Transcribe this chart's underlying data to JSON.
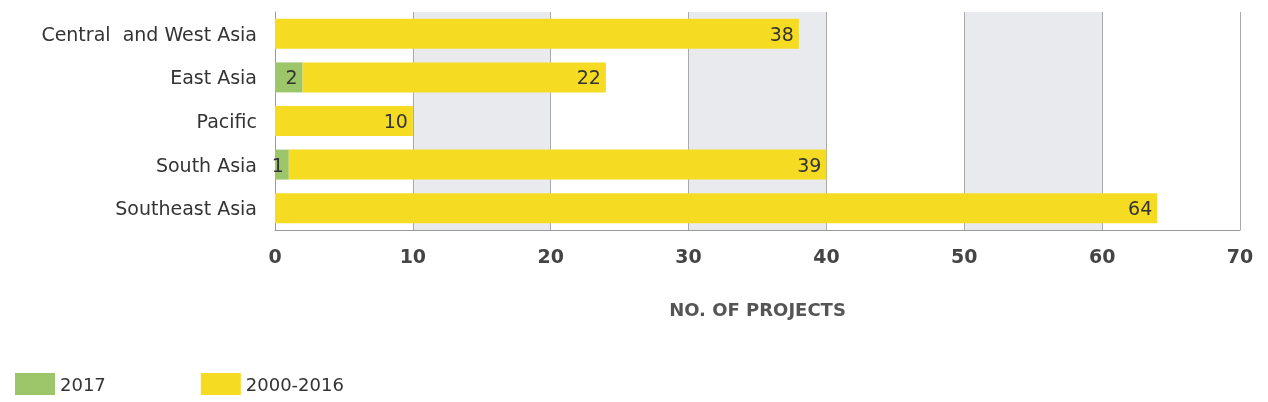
{
  "chart_data": {
    "type": "bar",
    "orientation": "horizontal",
    "stacked": true,
    "xlabel": "NO. OF PROJECTS",
    "categories": [
      "Central  and West Asia",
      "East Asia",
      "Pacific",
      "South Asia",
      "Southeast Asia"
    ],
    "series": [
      {
        "name": "2017",
        "color": "#9dc66a",
        "values": [
          null,
          2,
          null,
          1,
          null
        ]
      },
      {
        "name": "2000-2016",
        "color": "#f5dc22",
        "values": [
          38,
          22,
          10,
          39,
          64
        ]
      }
    ],
    "xlim": [
      0,
      70
    ],
    "xticks": [
      0,
      10,
      20,
      30,
      40,
      50,
      60,
      70
    ],
    "grid": "x",
    "data_labels": true,
    "legend": "bottom left"
  }
}
